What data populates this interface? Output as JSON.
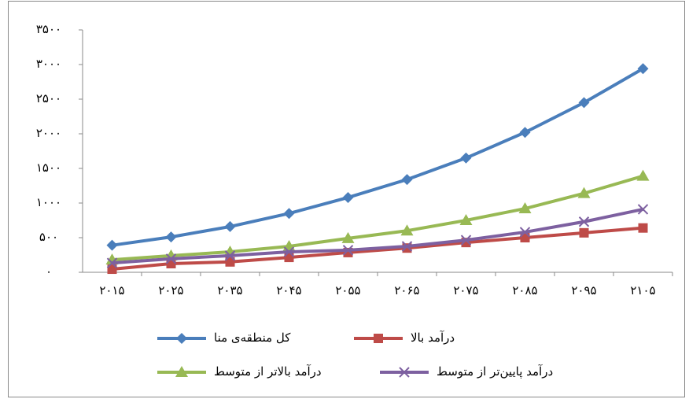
{
  "chart_data": {
    "type": "line",
    "categories": [
      "۲۰۱۵",
      "۲۰۲۵",
      "۲۰۳۵",
      "۲۰۴۵",
      "۲۰۵۵",
      "۲۰۶۵",
      "۲۰۷۵",
      "۲۰۸۵",
      "۲۰۹۵",
      "۲۱۰۵"
    ],
    "ylim": [
      0,
      3500
    ],
    "yticks": [
      {
        "value": 0,
        "label": "۰"
      },
      {
        "value": 500,
        "label": "۵۰۰"
      },
      {
        "value": 1000,
        "label": "۱۰۰۰"
      },
      {
        "value": 1500,
        "label": "۱۵۰۰"
      },
      {
        "value": 2000,
        "label": "۲۰۰۰"
      },
      {
        "value": 2500,
        "label": "۲۵۰۰"
      },
      {
        "value": 3000,
        "label": "۳۰۰۰"
      },
      {
        "value": 3500,
        "label": "۳۵۰۰"
      }
    ],
    "grid": false,
    "series": [
      {
        "name": "کل منطقه‌ی منا",
        "color": "#4a7ebb",
        "marker": "diamond",
        "values": [
          390,
          510,
          660,
          850,
          1080,
          1340,
          1650,
          2020,
          2450,
          2940
        ]
      },
      {
        "name": "درآمد بالا",
        "color": "#be4b48",
        "marker": "square",
        "values": [
          45,
          125,
          150,
          215,
          285,
          350,
          430,
          500,
          570,
          640
        ]
      },
      {
        "name": "درآمد بالاتر از متوسط",
        "color": "#98b954",
        "marker": "triangle",
        "values": [
          180,
          240,
          295,
          375,
          490,
          600,
          750,
          920,
          1140,
          1390
        ]
      },
      {
        "name": "درآمد پایین‌تر از متوسط",
        "color": "#7d60a0",
        "marker": "x",
        "values": [
          135,
          195,
          240,
          295,
          320,
          375,
          465,
          580,
          730,
          910
        ]
      }
    ]
  }
}
